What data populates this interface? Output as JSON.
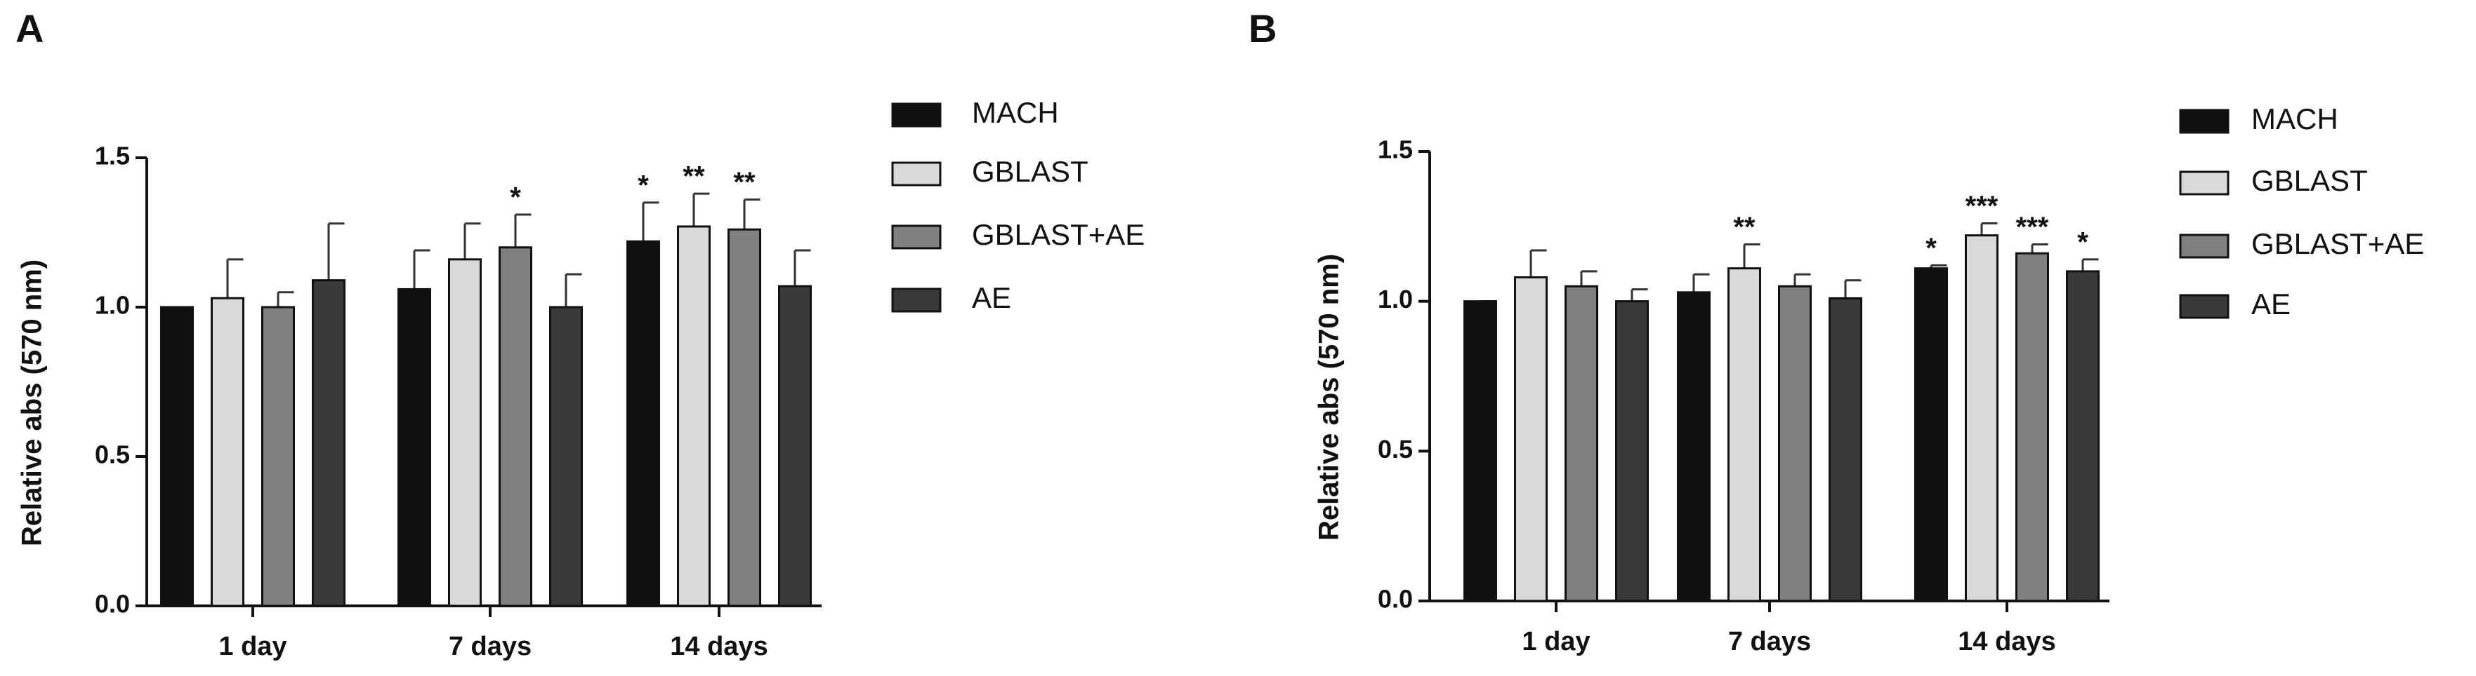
{
  "chart_data": [
    {
      "type": "bar",
      "panel": "A",
      "y_label": "Relative abs (570 nm)",
      "categories": [
        "1 day",
        "7 days",
        "14 days"
      ],
      "ylim": [
        0,
        1.5
      ],
      "yticks": [
        {
          "value": 0,
          "label": "0.0"
        },
        {
          "value": 0.5,
          "label": "0.5"
        },
        {
          "value": 1,
          "label": "1.0"
        },
        {
          "value": 1.5,
          "label": "1.5"
        }
      ],
      "series": [
        {
          "name": "MACH",
          "color": "#111111",
          "values": [
            1.0,
            1.06,
            1.22
          ],
          "errors": [
            0,
            0.13,
            0.13
          ],
          "significance": [
            null,
            null,
            "*"
          ]
        },
        {
          "name": "GBLAST",
          "color": "#d9d9d9",
          "values": [
            1.03,
            1.16,
            1.27
          ],
          "errors": [
            0.13,
            0.12,
            0.11
          ],
          "significance": [
            null,
            null,
            "**"
          ]
        },
        {
          "name": "GBLAST+AE",
          "color": "#808080",
          "values": [
            1.0,
            1.2,
            1.26
          ],
          "errors": [
            0.05,
            0.11,
            0.1
          ],
          "significance": [
            null,
            "*",
            "**"
          ]
        },
        {
          "name": "AE",
          "color": "#3a3a3a",
          "values": [
            1.09,
            1.0,
            1.07
          ],
          "errors": [
            0.19,
            0.11,
            0.12
          ],
          "significance": [
            null,
            null,
            null
          ]
        }
      ]
    },
    {
      "type": "bar",
      "panel": "B",
      "y_label": "Relative abs (570 nm)",
      "categories": [
        "1 day",
        "7 days",
        "14 days"
      ],
      "ylim": [
        0,
        1.5
      ],
      "yticks": [
        {
          "value": 0,
          "label": "0.0"
        },
        {
          "value": 0.5,
          "label": "0.5"
        },
        {
          "value": 1,
          "label": "1.0"
        },
        {
          "value": 1.5,
          "label": "1.5"
        }
      ],
      "series": [
        {
          "name": "MACH",
          "color": "#111111",
          "values": [
            1.0,
            1.03,
            1.11
          ],
          "errors": [
            0,
            0.06,
            0.01
          ],
          "significance": [
            null,
            null,
            "*"
          ]
        },
        {
          "name": "GBLAST",
          "color": "#d9d9d9",
          "values": [
            1.08,
            1.11,
            1.22
          ],
          "errors": [
            0.09,
            0.08,
            0.04
          ],
          "significance": [
            null,
            "**",
            "***"
          ]
        },
        {
          "name": "GBLAST+AE",
          "color": "#808080",
          "values": [
            1.05,
            1.05,
            1.16
          ],
          "errors": [
            0.05,
            0.04,
            0.03
          ],
          "significance": [
            null,
            null,
            "***"
          ]
        },
        {
          "name": "AE",
          "color": "#3a3a3a",
          "values": [
            1.0,
            1.01,
            1.1
          ],
          "errors": [
            0.04,
            0.06,
            0.04
          ],
          "significance": [
            null,
            null,
            "*"
          ]
        }
      ]
    }
  ]
}
